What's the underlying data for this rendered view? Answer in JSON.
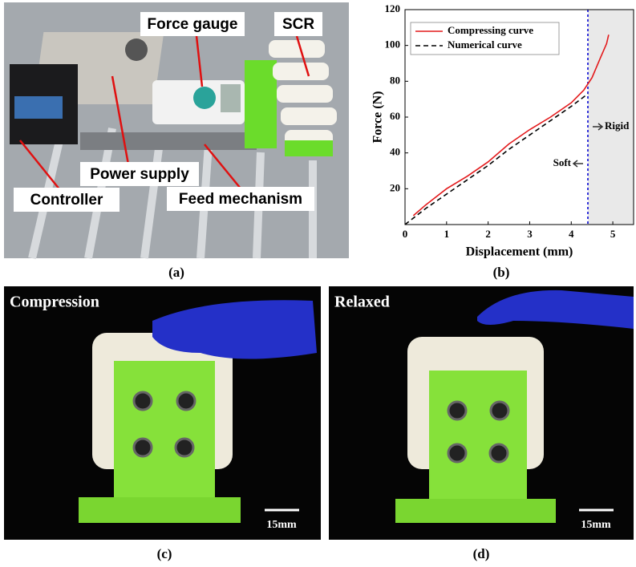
{
  "panels": {
    "a": {
      "label": "(a)",
      "annotations": [
        "Force gauge",
        "SCR",
        "Power supply",
        "Controller",
        "Feed mechanism"
      ]
    },
    "b": {
      "label": "(b)"
    },
    "c": {
      "label": "(c)",
      "caption": "Compression",
      "scale": "15mm"
    },
    "d": {
      "label": "(d)",
      "caption": "Relaxed",
      "scale": "15mm"
    }
  },
  "chart_data": {
    "type": "line",
    "xlabel": "Displacement (mm)",
    "ylabel": "Force (N)",
    "xlim": [
      0,
      5.5
    ],
    "ylim": [
      0,
      120
    ],
    "xticks": [
      0,
      1,
      2,
      3,
      4,
      5
    ],
    "yticks": [
      20,
      40,
      60,
      80,
      100,
      120
    ],
    "legend": "upper left",
    "threshold": 4.4,
    "threshold_color": "#1f1fd6",
    "annotations": [
      "Rigid",
      "Soft"
    ],
    "series": [
      {
        "name": "Compressing curve",
        "color": "#e31a1c",
        "dash": false,
        "x": [
          0.2,
          0.5,
          1,
          1.5,
          2,
          2.5,
          3,
          3.5,
          4,
          4.3,
          4.5,
          4.7,
          4.85,
          4.9
        ],
        "values": [
          5,
          11,
          20,
          27,
          35,
          45,
          53,
          60,
          68,
          75,
          82,
          93,
          101,
          106
        ]
      },
      {
        "name": "Numerical curve",
        "color": "#000000",
        "dash": true,
        "x": [
          0,
          0.5,
          1,
          1.5,
          2,
          2.5,
          3,
          3.5,
          4,
          4.4
        ],
        "values": [
          0,
          9,
          17,
          25,
          33,
          42,
          50,
          58,
          66,
          73
        ]
      }
    ]
  }
}
